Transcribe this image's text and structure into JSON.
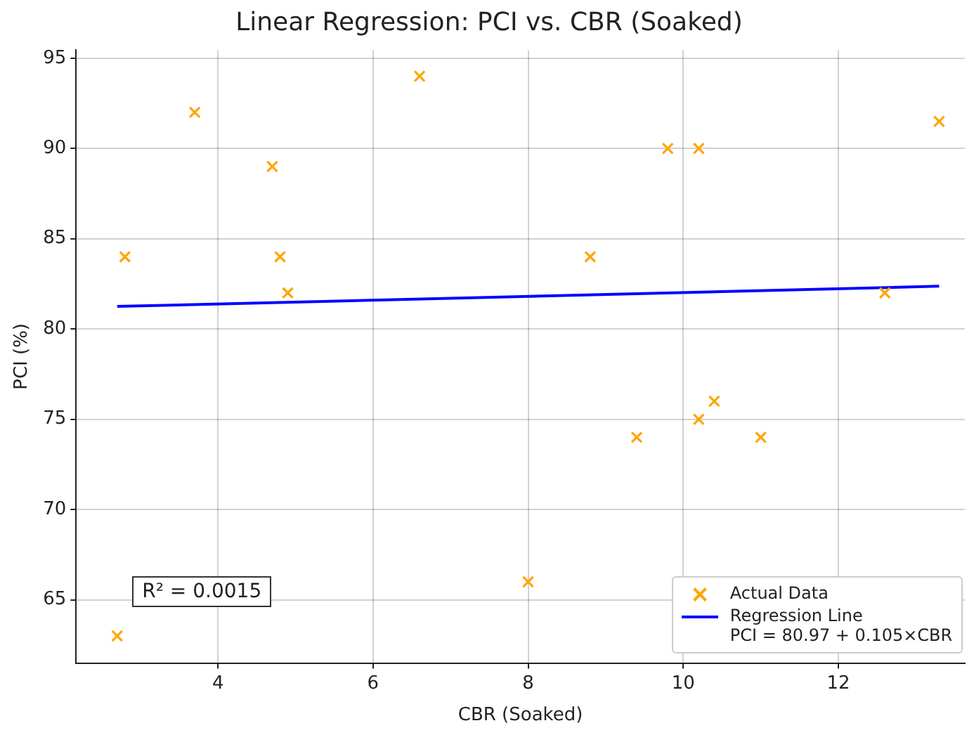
{
  "chart_data": {
    "type": "scatter",
    "title": "Linear Regression: PCI vs. CBR (Soaked)",
    "xlabel": "CBR (Soaked)",
    "ylabel": "PCI (%)",
    "xlim": [
      2.17,
      13.63
    ],
    "xticks": [
      4,
      6,
      8,
      10,
      12
    ],
    "ylim": [
      61.5,
      95.45
    ],
    "yticks": [
      65,
      70,
      75,
      80,
      85,
      90,
      95
    ],
    "grid": true,
    "legend": "bottom right",
    "annotations": [
      "R² = 0.0015"
    ],
    "series": [
      {
        "name": "Actual Data",
        "marker": "cross",
        "color": "#ffa500",
        "x": [
          2.7,
          2.8,
          3.7,
          4.7,
          4.8,
          4.9,
          6.6,
          8.0,
          8.8,
          9.4,
          9.8,
          10.2,
          10.2,
          10.4,
          11.0,
          12.6,
          13.3
        ],
        "values": [
          63,
          84,
          92,
          89,
          84,
          82,
          94,
          66,
          84,
          74,
          90,
          90,
          75,
          76,
          74,
          82,
          91.5
        ]
      },
      {
        "name": "Regression Line\nPCI = 80.97 + 0.105×CBR",
        "type": "line",
        "marker": "none",
        "line_style": "solid",
        "color": "#0000ff",
        "x": [
          2.7,
          13.3
        ],
        "values": [
          81.25,
          82.37
        ]
      }
    ]
  }
}
